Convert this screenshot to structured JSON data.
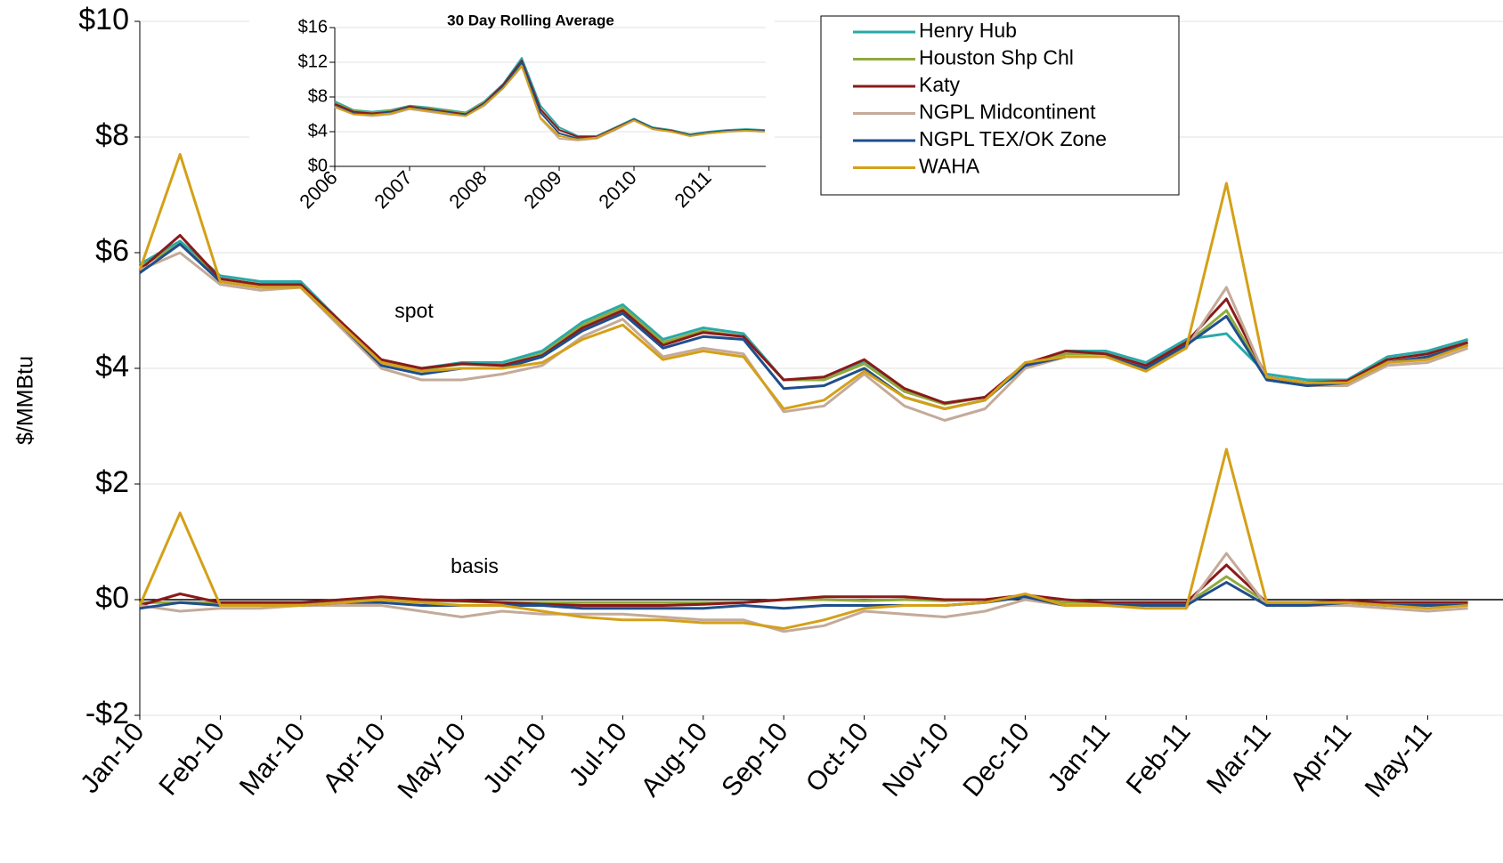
{
  "chart_data": [
    {
      "type": "line",
      "y_label": "$/MMBtu",
      "annotations": [
        "spot",
        "basis"
      ],
      "categories": [
        "Jan-10",
        null,
        "Feb-10",
        null,
        "Mar-10",
        null,
        "Apr-10",
        null,
        "May-10",
        null,
        "Jun-10",
        null,
        "Jul-10",
        null,
        "Aug-10",
        null,
        "Sep-10",
        null,
        "Oct-10",
        null,
        "Nov-10",
        null,
        "Dec-10",
        null,
        "Jan-11",
        null,
        "Feb-11",
        null,
        "Mar-11",
        null,
        "Apr-11",
        null,
        "May-11",
        null
      ],
      "ylim": [
        -2,
        10
      ],
      "yticks": [
        {
          "value": -2,
          "label": "-$2"
        },
        {
          "value": 0,
          "label": "$0"
        },
        {
          "value": 2,
          "label": "$2"
        },
        {
          "value": 4,
          "label": "$4"
        },
        {
          "value": 6,
          "label": "$6"
        },
        {
          "value": 8,
          "label": "$8"
        },
        {
          "value": 10,
          "label": "$10"
        }
      ],
      "grid": true,
      "legend": "top-right",
      "series": [
        {
          "name": "Henry Hub",
          "color": "#2aa9a9",
          "values": [
            5.8,
            6.2,
            5.6,
            5.5,
            5.5,
            4.8,
            4.1,
            4.0,
            4.1,
            4.1,
            4.3,
            4.8,
            5.1,
            4.5,
            4.7,
            4.6,
            3.8,
            3.8,
            4.1,
            3.6,
            3.4,
            3.5,
            4.0,
            4.3,
            4.3,
            4.1,
            4.5,
            4.6,
            3.9,
            3.8,
            3.8,
            4.2,
            4.3,
            4.5
          ]
        },
        {
          "name": "Houston Shp Chl",
          "color": "#8faa3c",
          "values": [
            5.75,
            6.15,
            5.55,
            5.45,
            5.45,
            4.77,
            4.1,
            3.98,
            4.07,
            4.05,
            4.25,
            4.75,
            5.05,
            4.45,
            4.65,
            4.55,
            3.8,
            3.8,
            4.08,
            3.6,
            3.38,
            3.5,
            4.05,
            4.25,
            4.25,
            4.02,
            4.42,
            5.0,
            3.85,
            3.75,
            3.75,
            4.15,
            4.25,
            4.45
          ]
        },
        {
          "name": "Katy",
          "color": "#8b1a1a",
          "values": [
            5.7,
            6.3,
            5.55,
            5.45,
            5.45,
            4.8,
            4.15,
            4.0,
            4.08,
            4.05,
            4.22,
            4.7,
            5.0,
            4.4,
            4.62,
            4.55,
            3.8,
            3.85,
            4.15,
            3.65,
            3.4,
            3.5,
            4.08,
            4.3,
            4.25,
            4.05,
            4.45,
            5.2,
            3.85,
            3.75,
            3.78,
            4.15,
            4.25,
            4.45
          ]
        },
        {
          "name": "NGPL Midcontinent",
          "color": "#c4aa99",
          "values": [
            5.7,
            6.0,
            5.45,
            5.35,
            5.4,
            4.7,
            4.0,
            3.8,
            3.8,
            3.9,
            4.05,
            4.55,
            4.85,
            4.2,
            4.35,
            4.25,
            3.25,
            3.35,
            3.9,
            3.35,
            3.1,
            3.3,
            4.0,
            4.2,
            4.2,
            4.0,
            4.35,
            5.4,
            3.8,
            3.7,
            3.7,
            4.05,
            4.1,
            4.35
          ]
        },
        {
          "name": "NGPL TEX/OK Zone",
          "color": "#1f4e8c",
          "values": [
            5.65,
            6.15,
            5.5,
            5.4,
            5.4,
            4.75,
            4.05,
            3.9,
            4.0,
            4.0,
            4.2,
            4.65,
            4.95,
            4.35,
            4.55,
            4.5,
            3.65,
            3.7,
            4.0,
            3.5,
            3.3,
            3.45,
            4.05,
            4.2,
            4.2,
            4.0,
            4.4,
            4.9,
            3.8,
            3.7,
            3.75,
            4.1,
            4.2,
            4.4
          ]
        },
        {
          "name": "WAHA",
          "color": "#d4a017",
          "values": [
            5.7,
            7.7,
            5.5,
            5.4,
            5.4,
            4.75,
            4.1,
            3.95,
            4.0,
            4.0,
            4.1,
            4.5,
            4.75,
            4.15,
            4.3,
            4.2,
            3.3,
            3.45,
            3.95,
            3.5,
            3.3,
            3.45,
            4.1,
            4.2,
            4.2,
            3.95,
            4.35,
            7.2,
            3.85,
            3.75,
            3.75,
            4.1,
            4.15,
            4.4
          ]
        }
      ],
      "basis_series": [
        {
          "name": "Houston Shp Chl",
          "color": "#8faa3c",
          "values": [
            -0.05,
            -0.05,
            -0.05,
            -0.05,
            -0.05,
            -0.03,
            0,
            -0.02,
            -0.03,
            -0.05,
            -0.05,
            -0.05,
            -0.05,
            -0.05,
            -0.05,
            -0.05,
            0,
            0,
            -0.02,
            0,
            -0.02,
            0,
            0.05,
            -0.05,
            -0.05,
            -0.08,
            -0.08,
            0.4,
            -0.05,
            -0.05,
            -0.05,
            -0.05,
            -0.05,
            -0.05
          ]
        },
        {
          "name": "Katy",
          "color": "#8b1a1a",
          "values": [
            -0.1,
            0.1,
            -0.05,
            -0.05,
            -0.05,
            0,
            0.05,
            0,
            -0.02,
            -0.05,
            -0.08,
            -0.1,
            -0.1,
            -0.1,
            -0.08,
            -0.05,
            0,
            0.05,
            0.05,
            0.05,
            0,
            0,
            0.08,
            0,
            -0.05,
            -0.05,
            -0.05,
            0.6,
            -0.05,
            -0.05,
            -0.02,
            -0.05,
            -0.05,
            -0.05
          ]
        },
        {
          "name": "NGPL Midcontinent",
          "color": "#c4aa99",
          "values": [
            -0.1,
            -0.2,
            -0.15,
            -0.15,
            -0.1,
            -0.1,
            -0.1,
            -0.2,
            -0.3,
            -0.2,
            -0.25,
            -0.25,
            -0.25,
            -0.3,
            -0.35,
            -0.35,
            -0.55,
            -0.45,
            -0.2,
            -0.25,
            -0.3,
            -0.2,
            0,
            -0.1,
            -0.1,
            -0.1,
            -0.15,
            0.8,
            -0.1,
            -0.1,
            -0.1,
            -0.15,
            -0.2,
            -0.15
          ]
        },
        {
          "name": "NGPL TEX/OK Zone",
          "color": "#1f4e8c",
          "values": [
            -0.15,
            -0.05,
            -0.1,
            -0.1,
            -0.1,
            -0.05,
            -0.05,
            -0.1,
            -0.1,
            -0.1,
            -0.1,
            -0.15,
            -0.15,
            -0.15,
            -0.15,
            -0.1,
            -0.15,
            -0.1,
            -0.1,
            -0.1,
            -0.1,
            -0.05,
            0.05,
            -0.1,
            -0.1,
            -0.1,
            -0.1,
            0.3,
            -0.1,
            -0.1,
            -0.05,
            -0.1,
            -0.1,
            -0.1
          ]
        },
        {
          "name": "WAHA",
          "color": "#d4a017",
          "values": [
            -0.1,
            1.5,
            -0.1,
            -0.1,
            -0.1,
            -0.05,
            0,
            -0.05,
            -0.1,
            -0.1,
            -0.2,
            -0.3,
            -0.35,
            -0.35,
            -0.4,
            -0.4,
            -0.5,
            -0.35,
            -0.15,
            -0.1,
            -0.1,
            -0.05,
            0.1,
            -0.1,
            -0.1,
            -0.15,
            -0.15,
            2.6,
            -0.05,
            -0.05,
            -0.05,
            -0.1,
            -0.15,
            -0.1
          ]
        }
      ]
    },
    {
      "type": "line",
      "title": "30 Day Rolling Average",
      "categories": [
        "2006",
        null,
        null,
        null,
        "2007",
        null,
        null,
        null,
        "2008",
        null,
        null,
        null,
        "2009",
        null,
        null,
        null,
        "2010",
        null,
        null,
        null,
        "2011",
        null,
        null,
        null
      ],
      "ylim": [
        0,
        16
      ],
      "yticks": [
        {
          "value": 0,
          "label": "$0"
        },
        {
          "value": 4,
          "label": "$4"
        },
        {
          "value": 8,
          "label": "$8"
        },
        {
          "value": 12,
          "label": "$12"
        },
        {
          "value": 16,
          "label": "$16"
        }
      ],
      "grid": true,
      "series": [
        {
          "name": "Henry Hub",
          "color": "#2aa9a9",
          "values": [
            7.5,
            6.5,
            6.3,
            6.5,
            7.0,
            6.8,
            6.5,
            6.2,
            7.5,
            9.5,
            12.5,
            7.0,
            4.5,
            3.5,
            3.5,
            4.5,
            5.5,
            4.5,
            4.2,
            3.7,
            4.0,
            4.2,
            4.3,
            4.2
          ]
        },
        {
          "name": "Houston Shp Chl",
          "color": "#8faa3c",
          "values": [
            7.3,
            6.4,
            6.2,
            6.4,
            6.9,
            6.7,
            6.4,
            6.1,
            7.4,
            9.3,
            11.8,
            6.5,
            4.2,
            3.4,
            3.4,
            4.4,
            5.4,
            4.4,
            4.1,
            3.6,
            3.9,
            4.1,
            4.2,
            4.1
          ]
        },
        {
          "name": "Katy",
          "color": "#8b1a1a",
          "values": [
            7.2,
            6.3,
            6.1,
            6.3,
            6.9,
            6.6,
            6.3,
            6.0,
            7.3,
            9.4,
            12.2,
            6.6,
            4.2,
            3.4,
            3.4,
            4.4,
            5.4,
            4.4,
            4.1,
            3.6,
            3.9,
            4.1,
            4.2,
            4.1
          ]
        },
        {
          "name": "NGPL Midcontinent",
          "color": "#c4aa99",
          "values": [
            6.8,
            6.0,
            5.8,
            6.0,
            6.6,
            6.3,
            6.0,
            5.8,
            7.0,
            9.0,
            11.5,
            5.5,
            3.2,
            3.0,
            3.2,
            4.2,
            5.3,
            4.3,
            4.0,
            3.5,
            3.8,
            4.0,
            4.1,
            4.0
          ]
        },
        {
          "name": "NGPL TEX/OK Zone",
          "color": "#1f4e8c",
          "values": [
            7.0,
            6.1,
            6.0,
            6.2,
            6.8,
            6.5,
            6.2,
            5.9,
            7.2,
            9.2,
            12.0,
            6.2,
            3.8,
            3.2,
            3.3,
            4.3,
            5.4,
            4.4,
            4.0,
            3.6,
            3.9,
            4.1,
            4.1,
            4.1
          ]
        },
        {
          "name": "WAHA",
          "color": "#d4a017",
          "values": [
            6.9,
            6.0,
            5.9,
            6.1,
            6.7,
            6.4,
            6.1,
            5.8,
            7.1,
            9.0,
            11.6,
            5.6,
            3.5,
            3.1,
            3.3,
            4.3,
            5.3,
            4.3,
            4.0,
            3.5,
            3.8,
            4.0,
            4.1,
            4.0
          ]
        }
      ]
    }
  ]
}
